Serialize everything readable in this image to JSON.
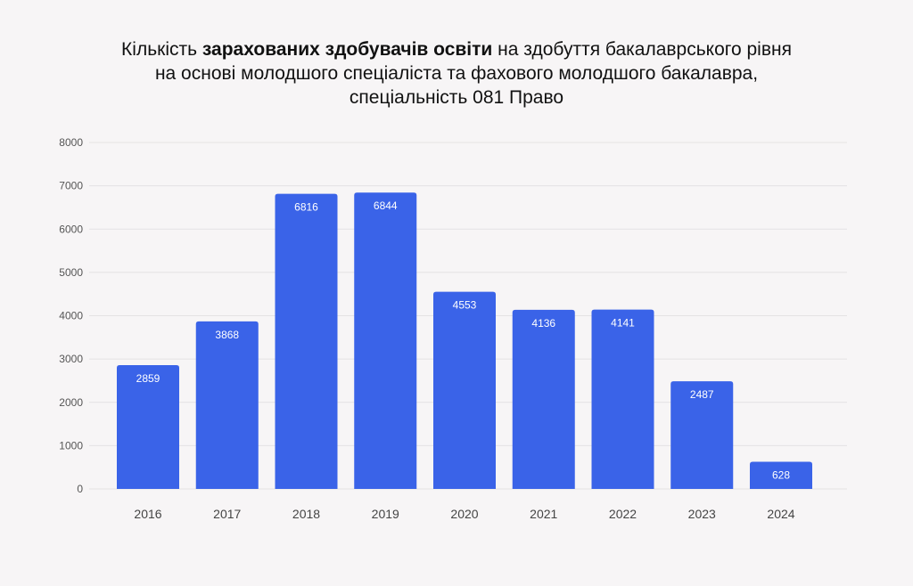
{
  "chart_data": {
    "type": "bar",
    "title": {
      "line1_before": "Кількість ",
      "line1_bold": "зарахованих здобувачів освіти",
      "line1_after": " на здобуття бакалаврського рівня",
      "line2": "на основі молодшого спеціаліста та фахового молодшого бакалавра,",
      "line3": "спеціальність 081 Право"
    },
    "categories": [
      "2016",
      "2017",
      "2018",
      "2019",
      "2020",
      "2021",
      "2022",
      "2023",
      "2024"
    ],
    "values": [
      2859,
      3868,
      6816,
      6844,
      4553,
      4136,
      4141,
      2487,
      628
    ],
    "ylim": [
      0,
      8000
    ],
    "yticks": [
      0,
      1000,
      2000,
      3000,
      4000,
      5000,
      6000,
      7000,
      8000
    ],
    "grid": true,
    "bar_color": "#3a63e8",
    "grid_color": "#e4e2e3"
  }
}
